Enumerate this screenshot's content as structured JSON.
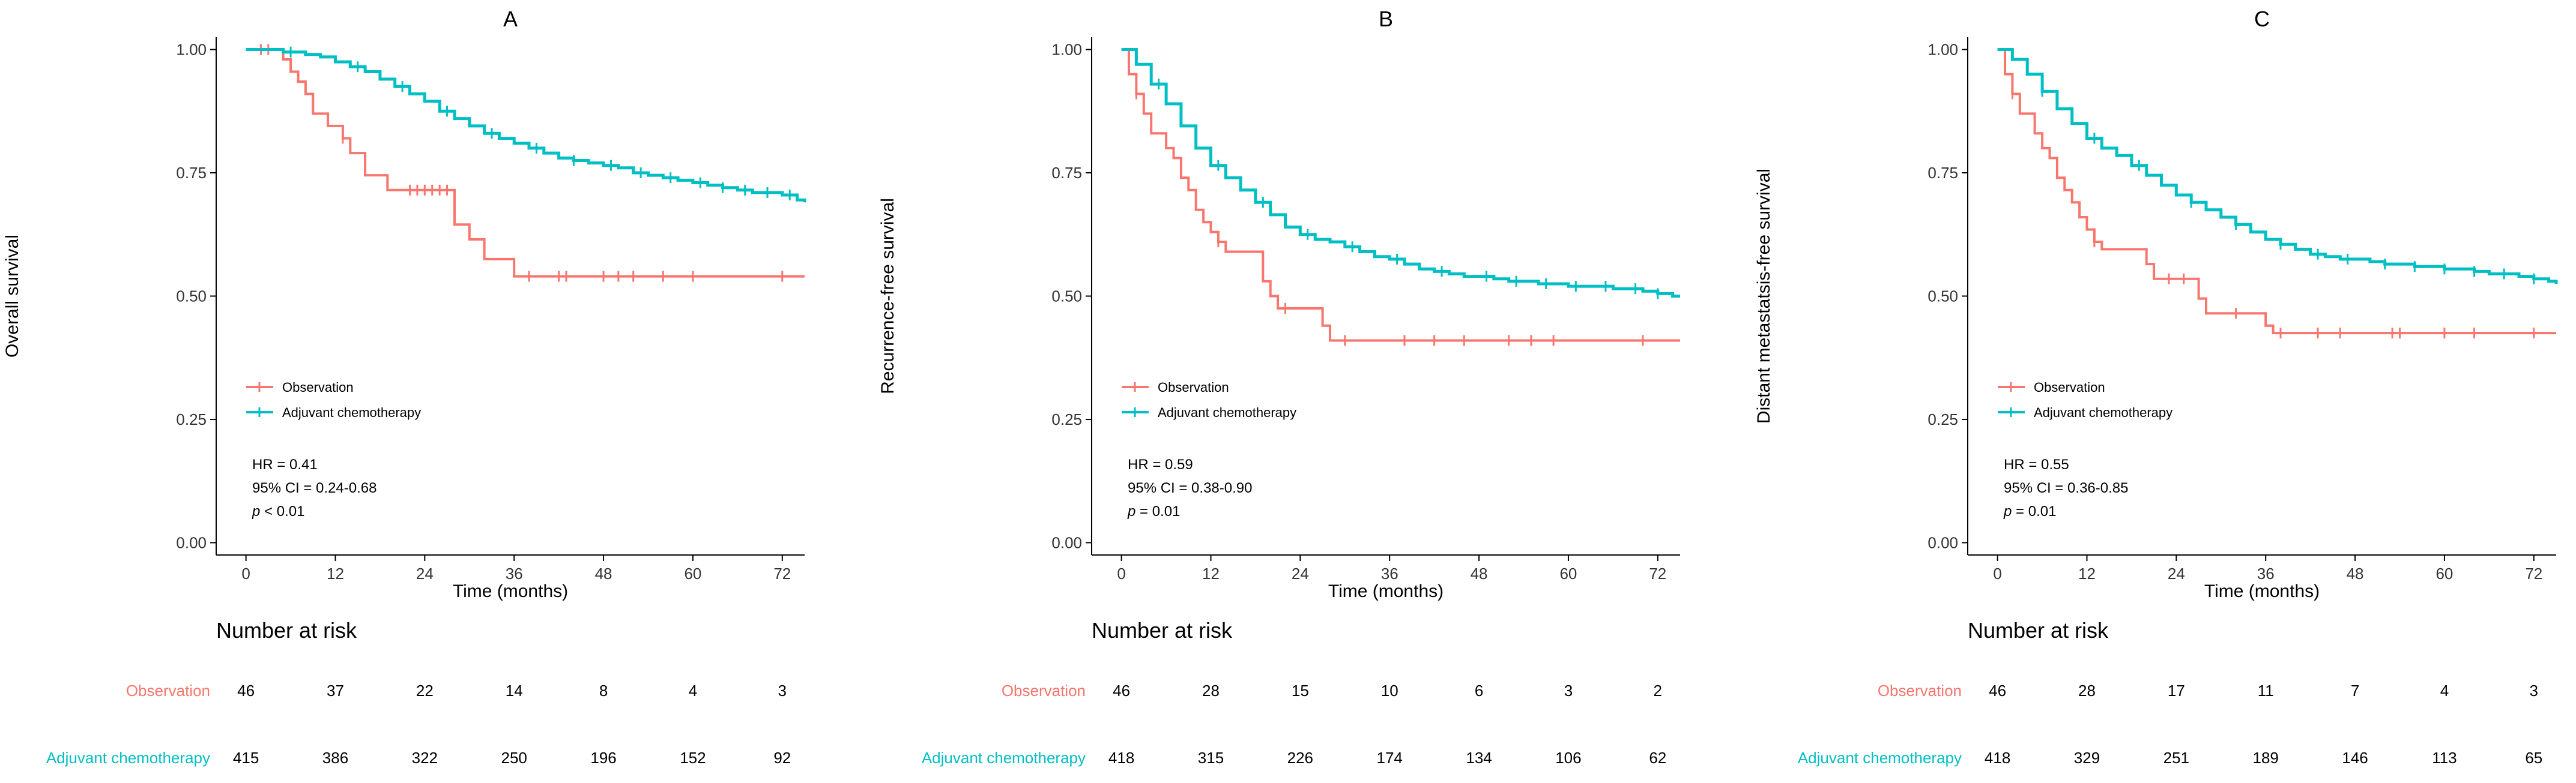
{
  "colors": {
    "observation": "#F8766D",
    "adjuvant": "#00BFC4",
    "axis": "#000000",
    "text": "#000000"
  },
  "chart_data": [
    {
      "type": "line",
      "panel": "A",
      "title": "A",
      "xlabel": "Time (months)",
      "ylabel": "Overall survival",
      "xlim": [
        -4,
        75
      ],
      "ylim": [
        -0.025,
        1.025
      ],
      "xticks": [
        0,
        12,
        24,
        36,
        48,
        60,
        72
      ],
      "yticks": [
        0.0,
        0.25,
        0.5,
        0.75,
        1.0
      ],
      "ytick_labels": [
        "0.00",
        "0.25",
        "0.50",
        "0.75",
        "1.00"
      ],
      "legend": [
        "Observation",
        "Adjuvant chemotherapy"
      ],
      "legend_position": "bottom-left",
      "stats": {
        "hr": "HR = 0.41",
        "ci": "95% CI = 0.24-0.68",
        "p_label": "p",
        "p_rest": " < 0.01"
      },
      "series": [
        {
          "name": "Observation",
          "color": "#F8766D",
          "x": [
            0,
            5,
            6,
            7,
            8,
            9,
            11,
            12,
            13,
            14,
            16,
            19,
            28,
            30,
            32,
            36,
            75
          ],
          "y": [
            1.0,
            0.98,
            0.955,
            0.935,
            0.91,
            0.87,
            0.845,
            0.845,
            0.82,
            0.79,
            0.745,
            0.715,
            0.645,
            0.615,
            0.575,
            0.54,
            0.54
          ],
          "censor_x": [
            2,
            3,
            13,
            22,
            23,
            24,
            25,
            26,
            27,
            38,
            42,
            43,
            48,
            50,
            52,
            56,
            60,
            72
          ]
        },
        {
          "name": "Adjuvant chemotherapy",
          "color": "#00BFC4",
          "x": [
            0,
            3,
            5,
            8,
            10,
            12,
            14,
            16,
            18,
            20,
            22,
            24,
            26,
            28,
            30,
            32,
            34,
            36,
            38,
            40,
            42,
            44,
            46,
            48,
            50,
            52,
            54,
            56,
            58,
            60,
            62,
            64,
            66,
            68,
            70,
            72,
            74,
            75
          ],
          "y": [
            1.0,
            1.0,
            0.995,
            0.99,
            0.985,
            0.975,
            0.965,
            0.955,
            0.94,
            0.925,
            0.91,
            0.895,
            0.875,
            0.86,
            0.845,
            0.83,
            0.82,
            0.81,
            0.8,
            0.79,
            0.78,
            0.775,
            0.77,
            0.765,
            0.76,
            0.75,
            0.745,
            0.74,
            0.735,
            0.73,
            0.725,
            0.72,
            0.715,
            0.71,
            0.71,
            0.705,
            0.695,
            0.69
          ],
          "censor_x": [
            6,
            15,
            21,
            27,
            33,
            39,
            44,
            49,
            53,
            57,
            61,
            64,
            67,
            70,
            73
          ]
        }
      ],
      "risk_table": {
        "title": "Number at risk",
        "times": [
          0,
          12,
          24,
          36,
          48,
          60,
          72
        ],
        "rows": [
          {
            "label": "Observation",
            "color": "#F8766D",
            "values": [
              "46",
              "37",
              "22",
              "14",
              "8",
              "4",
              "3"
            ]
          },
          {
            "label": "Adjuvant chemotherapy",
            "color": "#00BFC4",
            "values": [
              "415",
              "386",
              "322",
              "250",
              "196",
              "152",
              "92"
            ]
          }
        ]
      }
    },
    {
      "type": "line",
      "panel": "B",
      "title": "B",
      "xlabel": "Time (months)",
      "ylabel": "Recurrence-free survival",
      "xlim": [
        -4,
        75
      ],
      "ylim": [
        -0.025,
        1.025
      ],
      "xticks": [
        0,
        12,
        24,
        36,
        48,
        60,
        72
      ],
      "yticks": [
        0.0,
        0.25,
        0.5,
        0.75,
        1.0
      ],
      "ytick_labels": [
        "0.00",
        "0.25",
        "0.50",
        "0.75",
        "1.00"
      ],
      "legend": [
        "Observation",
        "Adjuvant chemotherapy"
      ],
      "legend_position": "bottom-left",
      "stats": {
        "hr": "HR = 0.59",
        "ci": "95% CI = 0.38-0.90",
        "p_label": "p",
        "p_rest": " = 0.01"
      },
      "series": [
        {
          "name": "Observation",
          "color": "#F8766D",
          "x": [
            0,
            1,
            2,
            3,
            4,
            6,
            7,
            8,
            9,
            10,
            11,
            12,
            13,
            14,
            19,
            20,
            21,
            27,
            28,
            29,
            75
          ],
          "y": [
            1.0,
            0.95,
            0.91,
            0.87,
            0.83,
            0.8,
            0.78,
            0.74,
            0.715,
            0.675,
            0.65,
            0.63,
            0.61,
            0.59,
            0.53,
            0.5,
            0.475,
            0.44,
            0.41,
            0.41,
            0.41
          ],
          "censor_x": [
            2,
            13,
            22,
            30,
            38,
            42,
            46,
            52,
            55,
            58,
            70
          ]
        },
        {
          "name": "Adjuvant chemotherapy",
          "color": "#00BFC4",
          "x": [
            0,
            2,
            4,
            6,
            8,
            10,
            12,
            14,
            16,
            18,
            20,
            22,
            24,
            26,
            28,
            30,
            32,
            34,
            36,
            38,
            40,
            42,
            44,
            46,
            48,
            50,
            52,
            54,
            56,
            58,
            60,
            62,
            64,
            66,
            68,
            70,
            72,
            74,
            75
          ],
          "y": [
            1.0,
            0.97,
            0.93,
            0.89,
            0.845,
            0.8,
            0.765,
            0.74,
            0.715,
            0.69,
            0.665,
            0.64,
            0.625,
            0.615,
            0.61,
            0.6,
            0.59,
            0.58,
            0.575,
            0.565,
            0.555,
            0.55,
            0.545,
            0.54,
            0.54,
            0.535,
            0.53,
            0.53,
            0.525,
            0.525,
            0.52,
            0.52,
            0.52,
            0.515,
            0.515,
            0.51,
            0.505,
            0.5,
            0.5
          ],
          "censor_x": [
            5,
            13,
            19,
            25,
            31,
            37,
            43,
            49,
            53,
            57,
            61,
            65,
            69,
            72
          ]
        }
      ],
      "risk_table": {
        "title": "Number at risk",
        "times": [
          0,
          12,
          24,
          36,
          48,
          60,
          72
        ],
        "rows": [
          {
            "label": "Observation",
            "color": "#F8766D",
            "values": [
              "46",
              "28",
              "15",
              "10",
              "6",
              "3",
              "2"
            ]
          },
          {
            "label": "Adjuvant chemotherapy",
            "color": "#00BFC4",
            "values": [
              "418",
              "315",
              "226",
              "174",
              "134",
              "106",
              "62"
            ]
          }
        ]
      }
    },
    {
      "type": "line",
      "panel": "C",
      "title": "C",
      "xlabel": "Time (months)",
      "ylabel": "Distant metastatsis-free survival",
      "xlim": [
        -4,
        75
      ],
      "ylim": [
        -0.025,
        1.025
      ],
      "xticks": [
        0,
        12,
        24,
        36,
        48,
        60,
        72
      ],
      "yticks": [
        0.0,
        0.25,
        0.5,
        0.75,
        1.0
      ],
      "ytick_labels": [
        "0.00",
        "0.25",
        "0.50",
        "0.75",
        "1.00"
      ],
      "legend": [
        "Observation",
        "Adjuvant chemotherapy"
      ],
      "legend_position": "bottom-left",
      "stats": {
        "hr": "HR = 0.55",
        "ci": "95% CI = 0.36-0.85",
        "p_label": "p",
        "p_rest": " = 0.01"
      },
      "series": [
        {
          "name": "Observation",
          "color": "#F8766D",
          "x": [
            0,
            1,
            2,
            3,
            5,
            6,
            7,
            8,
            9,
            10,
            11,
            12,
            13,
            14,
            20,
            21,
            27,
            28,
            36,
            37,
            75
          ],
          "y": [
            1.0,
            0.95,
            0.91,
            0.87,
            0.83,
            0.8,
            0.78,
            0.74,
            0.715,
            0.69,
            0.66,
            0.635,
            0.61,
            0.595,
            0.565,
            0.535,
            0.495,
            0.465,
            0.44,
            0.425,
            0.425
          ],
          "censor_x": [
            2,
            13,
            23,
            25,
            32,
            38,
            43,
            46,
            53,
            54,
            60,
            64,
            72
          ]
        },
        {
          "name": "Adjuvant chemotherapy",
          "color": "#00BFC4",
          "x": [
            0,
            2,
            4,
            6,
            8,
            10,
            12,
            14,
            16,
            18,
            20,
            22,
            24,
            26,
            28,
            30,
            32,
            34,
            36,
            38,
            40,
            42,
            44,
            46,
            48,
            50,
            52,
            54,
            56,
            58,
            60,
            62,
            64,
            66,
            68,
            70,
            72,
            74,
            75
          ],
          "y": [
            1.0,
            0.98,
            0.95,
            0.915,
            0.88,
            0.85,
            0.82,
            0.8,
            0.785,
            0.765,
            0.745,
            0.725,
            0.705,
            0.69,
            0.675,
            0.66,
            0.645,
            0.63,
            0.615,
            0.605,
            0.595,
            0.585,
            0.58,
            0.575,
            0.575,
            0.57,
            0.565,
            0.565,
            0.56,
            0.56,
            0.555,
            0.555,
            0.55,
            0.545,
            0.545,
            0.54,
            0.535,
            0.53,
            0.525
          ],
          "censor_x": [
            6,
            13,
            19,
            26,
            32,
            38,
            43,
            47,
            52,
            56,
            60,
            64,
            68,
            72
          ]
        }
      ],
      "risk_table": {
        "title": "Number at risk",
        "times": [
          0,
          12,
          24,
          36,
          48,
          60,
          72
        ],
        "rows": [
          {
            "label": "Observation",
            "color": "#F8766D",
            "values": [
              "46",
              "28",
              "17",
              "11",
              "7",
              "4",
              "3"
            ]
          },
          {
            "label": "Adjuvant chemotherapy",
            "color": "#00BFC4",
            "values": [
              "418",
              "329",
              "251",
              "189",
              "146",
              "113",
              "65"
            ]
          }
        ]
      }
    }
  ]
}
